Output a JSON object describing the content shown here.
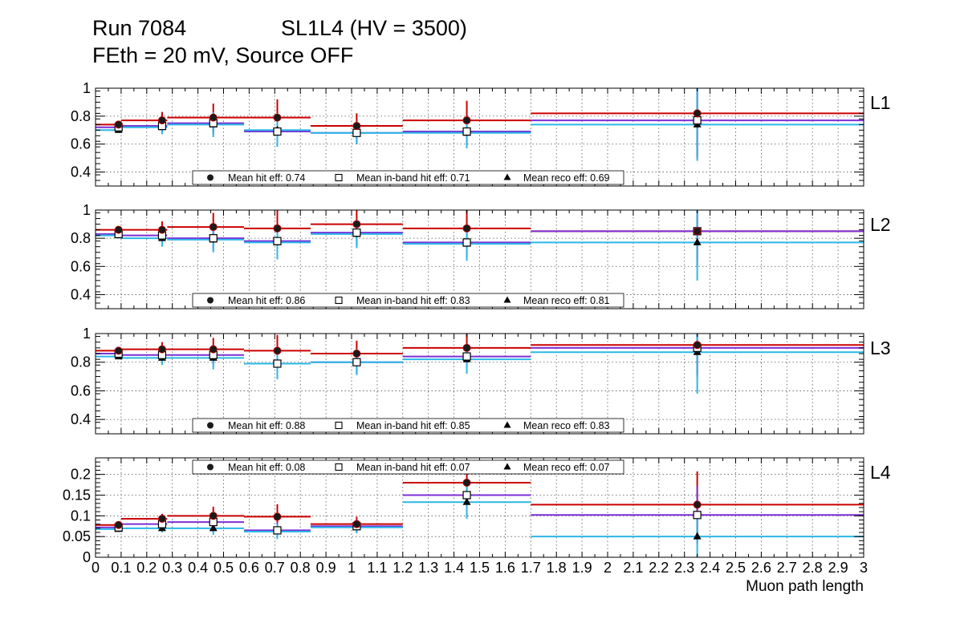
{
  "title": {
    "run": "Run 7084",
    "chamber": "SL1L4 (HV = 3500)",
    "conditions": "FEth = 20 mV, Source OFF"
  },
  "colors": {
    "hit": "#cc0000",
    "inband": "#7b2fd6",
    "reco": "#2ab8e6",
    "grid": "#555555",
    "frame": "#000000"
  },
  "legend_labels": {
    "hit": "Mean hit  eff:",
    "inband": "Mean in-band hit eff:",
    "reco": "Mean reco eff:"
  },
  "chart_data": {
    "type": "scatter",
    "xlabel": "Muon path length",
    "xlim": [
      0,
      3
    ],
    "x_ticks": [
      0,
      0.1,
      0.2,
      0.3,
      0.4,
      0.5,
      0.6,
      0.7,
      0.8,
      0.9,
      1,
      1.1,
      1.2,
      1.3,
      1.4,
      1.5,
      1.6,
      1.7,
      1.8,
      1.9,
      2,
      2.1,
      2.2,
      2.3,
      2.4,
      2.5,
      2.6,
      2.7,
      2.8,
      2.9,
      3
    ],
    "x_tick_labels": [
      "0",
      "0.1",
      "0.2",
      "0.3",
      "0.4",
      "0.5",
      "0.6",
      "0.7",
      "0.8",
      "0.9",
      "1",
      "1.1",
      "1.2",
      "1.3",
      "1.4",
      "1.5",
      "1.6",
      "1.7",
      "1.8",
      "1.9",
      "2",
      "2.1",
      "2.2",
      "2.3",
      "2.4",
      "2.5",
      "2.6",
      "2.7",
      "2.8",
      "2.9",
      "3"
    ],
    "bins": [
      [
        0,
        0.1
      ],
      [
        0.1,
        0.28
      ],
      [
        0.28,
        0.58
      ],
      [
        0.58,
        0.84
      ],
      [
        0.84,
        1.2
      ],
      [
        1.2,
        1.7
      ],
      [
        1.7,
        3.0
      ]
    ],
    "bin_centers": [
      0.09,
      0.26,
      0.46,
      0.71,
      1.02,
      1.45,
      2.35
    ],
    "panels": [
      {
        "name": "L1",
        "ylim": [
          0.3,
          1.0
        ],
        "yticks": [
          0.4,
          0.6,
          0.8,
          1
        ],
        "ytick_labels": [
          "0.4",
          "0.6",
          "0.8",
          "1"
        ],
        "legend_pos": "bottom",
        "series": [
          {
            "name": "Mean hit eff",
            "key": "hit",
            "mean": "0.74",
            "values": [
              0.74,
              0.77,
              0.79,
              0.79,
              0.73,
              0.77,
              0.82
            ],
            "errors": [
              0.02,
              0.06,
              0.1,
              0.13,
              0.09,
              0.14,
              0.32
            ]
          },
          {
            "name": "Mean in-band hit eff",
            "key": "inband",
            "mean": "0.71",
            "values": [
              0.72,
              0.73,
              0.75,
              0.69,
              0.68,
              0.69,
              0.77
            ],
            "errors": [
              0.02,
              0.05,
              0.08,
              0.1,
              0.08,
              0.1,
              0.25
            ]
          },
          {
            "name": "Mean reco eff",
            "key": "reco",
            "mean": "0.69",
            "values": [
              0.7,
              0.72,
              0.74,
              0.7,
              0.68,
              0.68,
              0.74
            ],
            "errors": [
              0.02,
              0.05,
              0.09,
              0.12,
              0.08,
              0.11,
              0.26
            ]
          }
        ]
      },
      {
        "name": "L2",
        "ylim": [
          0.3,
          1.0
        ],
        "yticks": [
          0.4,
          0.6,
          0.8,
          1
        ],
        "ytick_labels": [
          "0.4",
          "0.6",
          "0.8",
          "1"
        ],
        "legend_pos": "bottom",
        "series": [
          {
            "name": "Mean hit eff",
            "key": "hit",
            "mean": "0.86",
            "values": [
              0.86,
              0.86,
              0.88,
              0.87,
              0.9,
              0.87,
              0.85
            ],
            "errors": [
              0.02,
              0.06,
              0.1,
              0.13,
              0.11,
              0.14,
              0.2
            ]
          },
          {
            "name": "Mean in-band hit eff",
            "key": "inband",
            "mean": "0.83",
            "values": [
              0.83,
              0.82,
              0.8,
              0.78,
              0.84,
              0.77,
              0.85
            ],
            "errors": [
              0.02,
              0.05,
              0.08,
              0.1,
              0.09,
              0.1,
              0.25
            ]
          },
          {
            "name": "Mean reco eff",
            "key": "reco",
            "mean": "0.81",
            "values": [
              0.82,
              0.8,
              0.79,
              0.77,
              0.83,
              0.76,
              0.77
            ],
            "errors": [
              0.02,
              0.06,
              0.09,
              0.12,
              0.1,
              0.12,
              0.27
            ]
          }
        ]
      },
      {
        "name": "L3",
        "ylim": [
          0.3,
          1.0
        ],
        "yticks": [
          0.4,
          0.6,
          0.8,
          1
        ],
        "ytick_labels": [
          "0.4",
          "0.6",
          "0.8",
          "1"
        ],
        "legend_pos": "bottom",
        "series": [
          {
            "name": "Mean hit eff",
            "key": "hit",
            "mean": "0.88",
            "values": [
              0.88,
              0.89,
              0.89,
              0.88,
              0.86,
              0.9,
              0.92
            ],
            "errors": [
              0.02,
              0.05,
              0.08,
              0.11,
              0.09,
              0.11,
              0.2
            ]
          },
          {
            "name": "Mean in-band hit eff",
            "key": "inband",
            "mean": "0.85",
            "values": [
              0.86,
              0.85,
              0.85,
              0.79,
              0.8,
              0.84,
              0.9
            ],
            "errors": [
              0.02,
              0.04,
              0.07,
              0.09,
              0.08,
              0.08,
              0.2
            ]
          },
          {
            "name": "Mean reco eff",
            "key": "reco",
            "mean": "0.83",
            "values": [
              0.84,
              0.83,
              0.83,
              0.79,
              0.8,
              0.82,
              0.87
            ],
            "errors": [
              0.02,
              0.05,
              0.08,
              0.11,
              0.09,
              0.1,
              0.29
            ]
          }
        ]
      },
      {
        "name": "L4",
        "ylim": [
          0.0,
          0.24
        ],
        "yticks": [
          0,
          0.05,
          0.1,
          0.15,
          0.2
        ],
        "ytick_labels": [
          "0",
          "0.05",
          "0.1",
          "0.15",
          "0.2"
        ],
        "legend_pos": "top",
        "series": [
          {
            "name": "Mean hit eff",
            "key": "hit",
            "mean": "0.08",
            "values": [
              0.078,
              0.093,
              0.1,
              0.098,
              0.08,
              0.18,
              0.127
            ],
            "errors": [
              0.006,
              0.012,
              0.022,
              0.03,
              0.018,
              0.025,
              0.08
            ]
          },
          {
            "name": "Mean in-band hit eff",
            "key": "inband",
            "mean": "0.07",
            "values": [
              0.072,
              0.08,
              0.085,
              0.065,
              0.075,
              0.15,
              0.102
            ],
            "errors": [
              0.005,
              0.01,
              0.018,
              0.02,
              0.016,
              0.022,
              0.07
            ]
          },
          {
            "name": "Mean reco eff",
            "key": "reco",
            "mean": "0.07",
            "values": [
              0.068,
              0.07,
              0.07,
              0.062,
              0.072,
              0.133,
              0.05
            ],
            "errors": [
              0.005,
              0.01,
              0.016,
              0.018,
              0.014,
              0.04,
              0.05
            ]
          }
        ]
      }
    ]
  }
}
